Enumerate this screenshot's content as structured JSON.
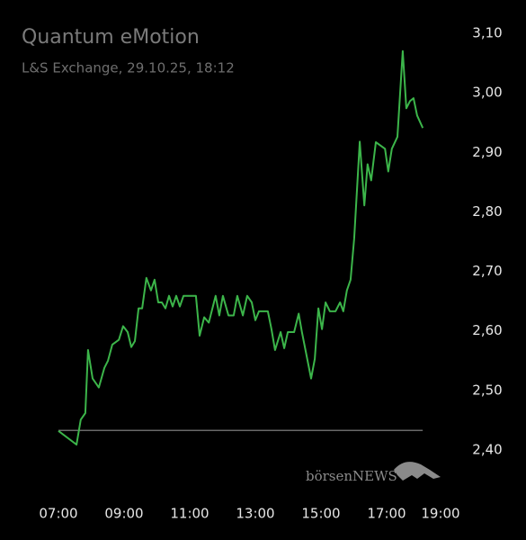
{
  "chart_data": {
    "type": "line",
    "title": "Quantum eMotion",
    "subtitle": "L&S Exchange, 29.10.25, 18:12",
    "watermark": "börsenNEWS",
    "color": "#3cb54a",
    "reference_line": 2.433,
    "x": [
      7.0,
      7.55,
      7.68,
      7.82,
      7.9,
      8.04,
      8.23,
      8.4,
      8.51,
      8.64,
      8.84,
      8.97,
      9.11,
      9.22,
      9.33,
      9.44,
      9.55,
      9.68,
      9.82,
      9.93,
      10.04,
      10.15,
      10.26,
      10.37,
      10.48,
      10.59,
      10.7,
      10.81,
      11.19,
      11.3,
      11.44,
      11.58,
      11.79,
      11.9,
      12.01,
      12.18,
      12.34,
      12.45,
      12.62,
      12.75,
      12.89,
      13.0,
      13.11,
      13.38,
      13.49,
      13.6,
      13.77,
      13.88,
      13.99,
      14.18,
      14.32,
      14.42,
      14.7,
      14.81,
      14.92,
      15.03,
      15.14,
      15.27,
      15.44,
      15.58,
      15.68,
      15.79,
      15.9,
      16.01,
      16.18,
      16.32,
      16.42,
      16.53,
      16.67,
      16.95,
      17.05,
      17.16,
      17.33,
      17.49,
      17.6,
      17.71,
      17.82,
      17.93,
      18.1
    ],
    "values": [
      2.432,
      2.409,
      2.451,
      2.462,
      2.568,
      2.52,
      2.505,
      2.538,
      2.55,
      2.577,
      2.585,
      2.608,
      2.598,
      2.573,
      2.583,
      2.638,
      2.638,
      2.689,
      2.668,
      2.686,
      2.648,
      2.648,
      2.638,
      2.659,
      2.641,
      2.659,
      2.641,
      2.659,
      2.659,
      2.592,
      2.623,
      2.614,
      2.659,
      2.626,
      2.659,
      2.626,
      2.626,
      2.659,
      2.626,
      2.659,
      2.648,
      2.618,
      2.633,
      2.633,
      2.603,
      2.568,
      2.598,
      2.571,
      2.598,
      2.598,
      2.629,
      2.598,
      2.52,
      2.553,
      2.638,
      2.603,
      2.648,
      2.633,
      2.633,
      2.648,
      2.633,
      2.668,
      2.686,
      2.755,
      2.918,
      2.811,
      2.88,
      2.853,
      2.917,
      2.906,
      2.868,
      2.906,
      2.926,
      3.07,
      2.974,
      2.986,
      2.991,
      2.962,
      2.941
    ],
    "xlim": [
      7,
      19
    ],
    "xticks": [
      {
        "value": 7,
        "label": "07:00"
      },
      {
        "value": 9,
        "label": "09:00"
      },
      {
        "value": 11,
        "label": "11:00"
      },
      {
        "value": 13,
        "label": "13:00"
      },
      {
        "value": 15,
        "label": "15:00"
      },
      {
        "value": 17,
        "label": "17:00"
      },
      {
        "value": 19,
        "label": "19:00"
      }
    ],
    "ylim": [
      2.4,
      3.1
    ],
    "yticks": [
      {
        "value": 2.4,
        "label": "2,40"
      },
      {
        "value": 2.5,
        "label": "2,50"
      },
      {
        "value": 2.6,
        "label": "2,60"
      },
      {
        "value": 2.7,
        "label": "2,70"
      },
      {
        "value": 2.8,
        "label": "2,80"
      },
      {
        "value": 2.9,
        "label": "2,90"
      },
      {
        "value": 3.0,
        "label": "3,00"
      },
      {
        "value": 3.1,
        "label": "3,10"
      }
    ]
  }
}
